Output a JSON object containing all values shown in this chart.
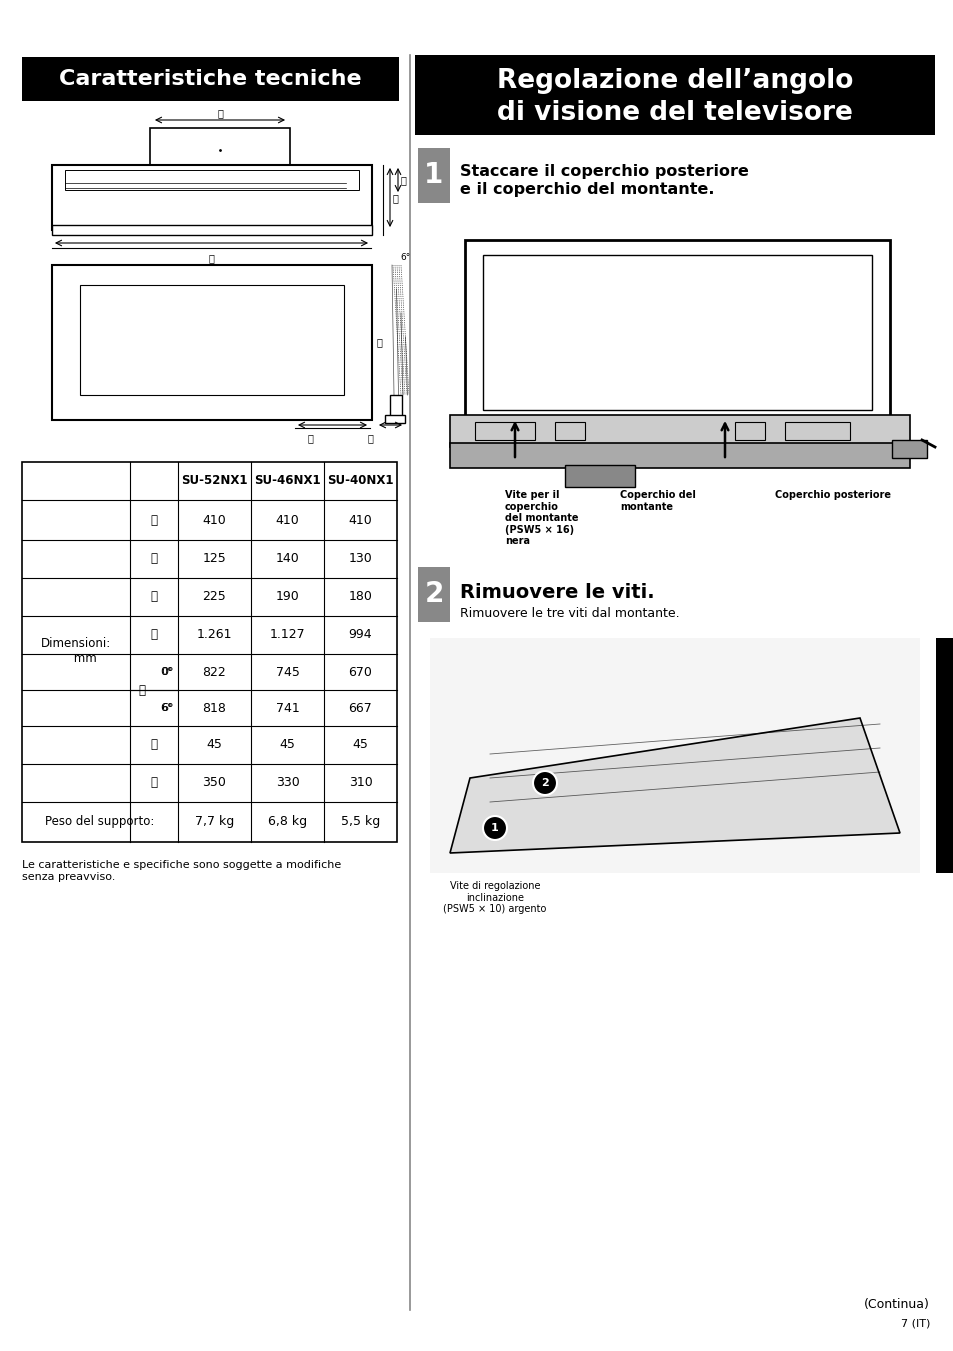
{
  "title_left": "Caratteristiche tecniche",
  "title_right_line1": "Regolazione dell’angolo",
  "title_right_line2": "di visione del televisore",
  "table_headers": [
    "SU-52NX1",
    "SU-46NX1",
    "SU-40NX1"
  ],
  "row_A": [
    "410",
    "410",
    "410"
  ],
  "row_B": [
    "125",
    "140",
    "130"
  ],
  "row_C": [
    "225",
    "190",
    "180"
  ],
  "row_D": [
    "1.261",
    "1.127",
    "994"
  ],
  "row_E0": [
    "822",
    "745",
    "670"
  ],
  "row_E6": [
    "818",
    "741",
    "667"
  ],
  "row_F": [
    "45",
    "45",
    "45"
  ],
  "row_G": [
    "350",
    "330",
    "310"
  ],
  "peso": [
    "7,7 kg",
    "6,8 kg",
    "5,5 kg"
  ],
  "footer": "Le caratteristiche e specifiche sono soggette a modifiche\nsenza preavviso.",
  "step1_num": "1",
  "step1_title_l1": "Staccare il coperchio posteriore",
  "step1_title_l2": "e il coperchio del montante.",
  "step2_num": "2",
  "step2_title": "Rimuovere le viti.",
  "step2_sub": "Rimuovere le tre viti dal montante.",
  "lbl1": "Vite per il\ncoperchio\ndel montante\n(PSW5 × 16)\nnera",
  "lbl2": "Coperchio del\nmontante",
  "lbl3": "Coperchio posteriore",
  "lbl4": "Vite di regolazione\ninclinazione\n(PSW5 × 10) argento",
  "continua": "(Continua)",
  "page": "7",
  "page_it": "(IT)"
}
